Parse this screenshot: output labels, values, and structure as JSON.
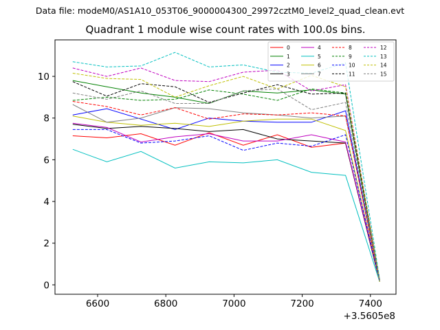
{
  "header": {
    "filename": "Data file: modeM0/AS1A10_053T06_9000004300_29972cztM0_level2_quad_clean.evt"
  },
  "chart_data": {
    "type": "line",
    "title": "Quadrant 1 module wise count rates with 100.0s bins.",
    "x_offset_label": "+3.5605e8",
    "x": [
      6527,
      6627,
      6727,
      6827,
      6927,
      7027,
      7127,
      7227,
      7327,
      7427
    ],
    "xlim": [
      6475,
      7475
    ],
    "ylim": [
      -0.45,
      11.75
    ],
    "xticks": [
      "6600",
      "6800",
      "7000",
      "7200",
      "7400"
    ],
    "xtick_values": [
      6600,
      6800,
      7000,
      7200,
      7400
    ],
    "yticks": [
      "0",
      "2",
      "4",
      "6",
      "8",
      "10"
    ],
    "ytick_values": [
      0,
      2,
      4,
      6,
      8,
      10
    ],
    "legend_position": "top-right",
    "series": [
      {
        "name": "0",
        "color": "#ff0000",
        "dash": "solid",
        "values": [
          7.15,
          7.05,
          7.25,
          6.7,
          7.3,
          6.7,
          7.2,
          6.6,
          6.8,
          0.15
        ]
      },
      {
        "name": "1",
        "color": "#008000",
        "dash": "solid",
        "values": [
          9.8,
          9.5,
          9.2,
          9.0,
          8.7,
          9.3,
          9.2,
          9.35,
          9.15,
          0.2
        ]
      },
      {
        "name": "2",
        "color": "#0000ff",
        "dash": "solid",
        "values": [
          8.15,
          8.45,
          7.95,
          7.45,
          8.0,
          7.85,
          7.8,
          7.8,
          8.35,
          0.2
        ]
      },
      {
        "name": "3",
        "color": "#000000",
        "dash": "solid",
        "values": [
          7.7,
          7.5,
          7.6,
          7.5,
          7.35,
          7.45,
          7.0,
          6.9,
          6.8,
          0.15
        ]
      },
      {
        "name": "4",
        "color": "#bf00bf",
        "dash": "solid",
        "values": [
          7.75,
          7.55,
          6.85,
          7.1,
          7.25,
          6.9,
          6.9,
          7.2,
          6.85,
          0.2
        ]
      },
      {
        "name": "5",
        "color": "#00bfbf",
        "dash": "solid",
        "values": [
          6.5,
          5.9,
          6.4,
          5.6,
          5.9,
          5.85,
          6.0,
          5.4,
          5.25,
          0.15
        ]
      },
      {
        "name": "6",
        "color": "#bfbf00",
        "dash": "solid",
        "values": [
          8.1,
          7.8,
          7.65,
          7.75,
          7.6,
          7.85,
          7.95,
          7.95,
          7.4,
          0.15
        ]
      },
      {
        "name": "7",
        "color": "#808080",
        "dash": "solid",
        "values": [
          8.65,
          7.8,
          8.0,
          8.5,
          8.45,
          8.25,
          8.15,
          8.0,
          8.1,
          0.2
        ]
      },
      {
        "name": "8",
        "color": "#ff0000",
        "dash": "dashed",
        "values": [
          8.8,
          8.55,
          8.15,
          8.5,
          7.95,
          8.2,
          8.15,
          8.25,
          8.1,
          0.2
        ]
      },
      {
        "name": "9",
        "color": "#008000",
        "dash": "dashed",
        "values": [
          8.85,
          9.0,
          8.85,
          8.9,
          9.35,
          9.15,
          8.85,
          9.4,
          9.2,
          0.25
        ]
      },
      {
        "name": "10",
        "color": "#0000ff",
        "dash": "dashed",
        "values": [
          7.45,
          7.45,
          6.8,
          6.9,
          7.15,
          6.45,
          6.8,
          6.65,
          7.2,
          0.2
        ]
      },
      {
        "name": "11",
        "color": "#000000",
        "dash": "dashed",
        "values": [
          9.75,
          9.05,
          9.65,
          9.5,
          8.75,
          9.2,
          9.6,
          9.15,
          9.2,
          0.25
        ]
      },
      {
        "name": "12",
        "color": "#bf00bf",
        "dash": "dashed",
        "values": [
          10.4,
          10.0,
          10.4,
          9.8,
          9.75,
          10.2,
          10.3,
          9.3,
          9.6,
          0.25
        ]
      },
      {
        "name": "13",
        "color": "#00bfbf",
        "dash": "dashed",
        "values": [
          10.7,
          10.45,
          10.5,
          11.15,
          10.45,
          10.55,
          10.2,
          10.15,
          10.65,
          0.3
        ]
      },
      {
        "name": "14",
        "color": "#bfbf00",
        "dash": "dashed",
        "values": [
          10.15,
          9.9,
          9.85,
          9.0,
          9.55,
          10.0,
          9.4,
          10.05,
          9.5,
          0.25
        ]
      },
      {
        "name": "15",
        "color": "#808080",
        "dash": "dashed",
        "values": [
          9.2,
          8.9,
          9.3,
          8.7,
          8.7,
          9.3,
          9.4,
          8.4,
          8.75,
          0.2
        ]
      }
    ]
  }
}
